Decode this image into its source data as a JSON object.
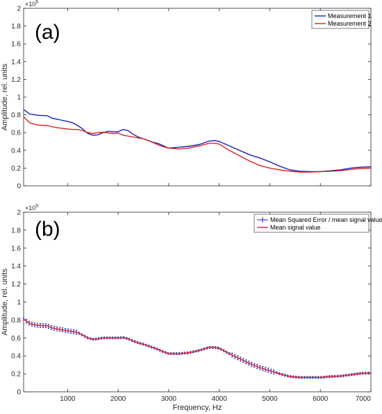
{
  "chart_data": [
    {
      "type": "line",
      "panel_label": "(a)",
      "ylabel": "Amplitude, rel. units",
      "xlabel": "",
      "exponent_base": "×10",
      "exponent_power": "5",
      "xlim": [
        130,
        7000
      ],
      "ylim": [
        0,
        200000
      ],
      "xticks": [
        1000,
        2000,
        3000,
        4000,
        5000,
        6000,
        7000
      ],
      "xtick_labels": [
        "",
        "",
        "",
        "",
        "",
        "",
        ""
      ],
      "yticks": [
        0,
        20000,
        40000,
        60000,
        80000,
        100000,
        120000,
        140000,
        160000,
        180000,
        200000
      ],
      "ytick_labels": [
        "0",
        "0.2",
        "0.4",
        "0.6",
        "0.8",
        "1",
        "1.2",
        "1.4",
        "1.6",
        "1.8",
        "2"
      ],
      "grid": false,
      "legend": "top-right",
      "x": [
        130,
        250,
        400,
        600,
        700,
        800,
        1000,
        1100,
        1200,
        1300,
        1400,
        1500,
        1600,
        1700,
        1800,
        1900,
        2000,
        2100,
        2200,
        2300,
        2400,
        2500,
        2600,
        2700,
        2800,
        2900,
        3000,
        3200,
        3400,
        3600,
        3800,
        3900,
        4000,
        4200,
        4400,
        4600,
        4800,
        5000,
        5200,
        5400,
        5600,
        5800,
        6000,
        6200,
        6400,
        6600,
        6800,
        7000
      ],
      "series": [
        {
          "name": "Measurement 1",
          "color": "#1f1fb4",
          "values": [
            86000,
            81000,
            79500,
            79000,
            76000,
            75000,
            72500,
            71000,
            68000,
            64000,
            59000,
            57000,
            57500,
            60000,
            61500,
            61000,
            61000,
            63500,
            62000,
            58000,
            55000,
            53000,
            51000,
            49000,
            47500,
            45000,
            42500,
            43500,
            44500,
            46500,
            50500,
            51000,
            50000,
            45000,
            40000,
            35000,
            31500,
            27000,
            22000,
            18000,
            16500,
            16000,
            16000,
            17000,
            18000,
            20000,
            21000,
            21500
          ]
        },
        {
          "name": "Measurement 2",
          "color": "#e02020",
          "values": [
            78000,
            71000,
            68500,
            68000,
            66500,
            65500,
            64000,
            63500,
            63500,
            62000,
            60000,
            59000,
            60000,
            60500,
            59500,
            59000,
            59500,
            57000,
            56000,
            55000,
            54000,
            53000,
            51000,
            48500,
            46000,
            44000,
            42500,
            41500,
            42500,
            45000,
            48000,
            48000,
            47000,
            40000,
            34000,
            28000,
            23000,
            20000,
            18000,
            16500,
            15500,
            15500,
            16000,
            16500,
            17000,
            18500,
            19500,
            20000
          ]
        }
      ]
    },
    {
      "type": "line",
      "panel_label": "(b)",
      "ylabel": "Amplitude, rel. units",
      "xlabel": "Frequency, Hz",
      "exponent_base": "×10",
      "exponent_power": "5",
      "xlim": [
        130,
        7000
      ],
      "ylim": [
        0,
        200000
      ],
      "xticks": [
        1000,
        2000,
        3000,
        4000,
        5000,
        6000,
        7000
      ],
      "xtick_labels": [
        "1000",
        "2000",
        "3000",
        "4000",
        "5000",
        "6000",
        "7000"
      ],
      "yticks": [
        0,
        20000,
        40000,
        60000,
        80000,
        100000,
        120000,
        140000,
        160000,
        180000,
        200000
      ],
      "ytick_labels": [
        "0",
        "0.2",
        "0.4",
        "0.6",
        "0.8",
        "1",
        "1.2",
        "1.4",
        "1.6",
        "1.8",
        "2"
      ],
      "grid": false,
      "legend": "top-right",
      "x": [
        130,
        250,
        400,
        600,
        700,
        800,
        1000,
        1100,
        1200,
        1300,
        1400,
        1500,
        1600,
        1700,
        1800,
        1900,
        2000,
        2100,
        2200,
        2300,
        2400,
        2500,
        2600,
        2700,
        2800,
        2900,
        3000,
        3200,
        3400,
        3600,
        3800,
        3900,
        4000,
        4200,
        4400,
        4600,
        4800,
        5000,
        5200,
        5400,
        5600,
        5800,
        6000,
        6200,
        6400,
        6600,
        6800,
        7000
      ],
      "series": [
        {
          "name": "Mean Squared Error / mean signal value",
          "color": "#1f1fb4",
          "kind": "errorbar",
          "values": [
            81000,
            76000,
            74000,
            73500,
            71000,
            70000,
            68000,
            67000,
            66000,
            63000,
            60000,
            58500,
            59000,
            60000,
            60000,
            60000,
            60000,
            60500,
            59000,
            56500,
            54500,
            53000,
            51000,
            49000,
            47000,
            44500,
            42500,
            42500,
            43500,
            46000,
            49500,
            49500,
            48500,
            42500,
            37000,
            31500,
            27000,
            23500,
            20000,
            17000,
            16000,
            16000,
            16000,
            17000,
            17500,
            19000,
            20500,
            21000
          ]
        },
        {
          "name": "Mean signal value",
          "color": "#e02020",
          "values": [
            81000,
            76000,
            74000,
            73500,
            71000,
            70000,
            68000,
            67000,
            66000,
            63000,
            60000,
            58500,
            59000,
            60000,
            60000,
            60000,
            60000,
            60500,
            59000,
            56500,
            54500,
            53000,
            51000,
            49000,
            47000,
            44500,
            42500,
            42500,
            43500,
            46000,
            49500,
            49500,
            48500,
            42500,
            37000,
            31500,
            27000,
            23500,
            20000,
            17000,
            16000,
            16000,
            16000,
            17000,
            17500,
            19000,
            20500,
            21000
          ]
        }
      ]
    }
  ]
}
